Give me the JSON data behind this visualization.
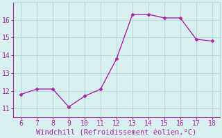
{
  "x": [
    6,
    7,
    8,
    9,
    10,
    11,
    12,
    13,
    14,
    15,
    16,
    17,
    18
  ],
  "y": [
    11.8,
    12.1,
    12.1,
    11.1,
    11.7,
    12.1,
    13.8,
    16.3,
    16.3,
    16.1,
    16.1,
    14.9,
    14.8
  ],
  "line_color": "#aa22aa",
  "marker": "D",
  "marker_size": 2.5,
  "background_color": "#d8f0f0",
  "grid_color": "#b8dcdc",
  "xlabel": "Windchill (Refroidissement éolien,°C)",
  "xlabel_color": "#aa22aa",
  "tick_color": "#aa22aa",
  "xlim": [
    5.5,
    18.5
  ],
  "ylim": [
    10.5,
    17.0
  ],
  "yticks": [
    11,
    12,
    13,
    14,
    15,
    16
  ],
  "xticks": [
    6,
    7,
    8,
    9,
    10,
    11,
    12,
    13,
    14,
    15,
    16,
    17,
    18
  ],
  "font_family": "monospace",
  "tick_fontsize": 7,
  "xlabel_fontsize": 7.5,
  "linewidth": 1.0,
  "spine_color": "#aa22aa"
}
